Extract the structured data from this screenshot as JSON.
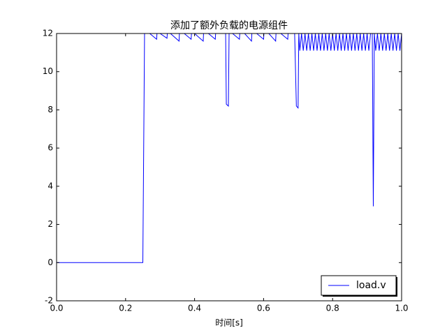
{
  "chart_data": {
    "type": "line",
    "title": "添加了额外负载的电源组件",
    "x_label": "时间[s]",
    "x": [
      0,
      0.25,
      0.255,
      0.27,
      0.29,
      0.291,
      0.3,
      0.32,
      0.321,
      0.33,
      0.355,
      0.356,
      0.37,
      0.39,
      0.391,
      0.4,
      0.425,
      0.426,
      0.44,
      0.46,
      0.461,
      0.49,
      0.492,
      0.498,
      0.5,
      0.51,
      0.53,
      0.531,
      0.545,
      0.565,
      0.566,
      0.58,
      0.6,
      0.601,
      0.615,
      0.635,
      0.636,
      0.65,
      0.67,
      0.671,
      0.69,
      0.695,
      0.7,
      0.702,
      0.705,
      0.71,
      0.715,
      0.72,
      0.725,
      0.73,
      0.735,
      0.74,
      0.745,
      0.75,
      0.755,
      0.76,
      0.765,
      0.77,
      0.775,
      0.78,
      0.785,
      0.79,
      0.795,
      0.8,
      0.805,
      0.81,
      0.815,
      0.82,
      0.825,
      0.83,
      0.835,
      0.84,
      0.845,
      0.85,
      0.855,
      0.86,
      0.865,
      0.87,
      0.875,
      0.88,
      0.885,
      0.89,
      0.895,
      0.9,
      0.905,
      0.91,
      0.915,
      0.918,
      0.921,
      0.925,
      0.93,
      0.935,
      0.94,
      0.945,
      0.95,
      0.955,
      0.96,
      0.965,
      0.97,
      0.975,
      0.98,
      0.985,
      0.99,
      0.995,
      1.0
    ],
    "series": [
      {
        "name": "load.v",
        "color": "#0000ff",
        "values": [
          0,
          0,
          12,
          12,
          11.7,
          12,
          12,
          11.75,
          12,
          12,
          11.6,
          12,
          12,
          11.7,
          12,
          12,
          11.6,
          12,
          12,
          11.7,
          12,
          12,
          8.3,
          8.2,
          12,
          12,
          11.7,
          12,
          12,
          11.6,
          12,
          12,
          11.7,
          12,
          12,
          11.6,
          12,
          12,
          11.7,
          12,
          12,
          8.2,
          8.1,
          12,
          11.1,
          12,
          11.1,
          12,
          11.1,
          12,
          11.1,
          12,
          11.1,
          12,
          11.1,
          12,
          11.1,
          12,
          11.1,
          12,
          11.1,
          12,
          11.1,
          12,
          11.1,
          12,
          11.1,
          12,
          11.1,
          12,
          11.1,
          12,
          11.1,
          12,
          11.1,
          12,
          11.1,
          12,
          11.1,
          12,
          11.1,
          12,
          11.1,
          12,
          11.1,
          12,
          12,
          2.95,
          12,
          11.1,
          12,
          11.1,
          12,
          11.1,
          12,
          11.1,
          12,
          11.1,
          12,
          11.1,
          12,
          11.1,
          12,
          11.1,
          12
        ]
      }
    ],
    "xlim": [
      0,
      1
    ],
    "ylim": [
      -2,
      12
    ],
    "xticks": [
      {
        "value": 0,
        "label": "0.0"
      },
      0.2,
      0.4,
      0.6,
      0.8,
      {
        "value": 1,
        "label": "1.0"
      }
    ],
    "yticks": [
      -2,
      0,
      2,
      4,
      6,
      8,
      10,
      12
    ],
    "legend": "lower right"
  }
}
